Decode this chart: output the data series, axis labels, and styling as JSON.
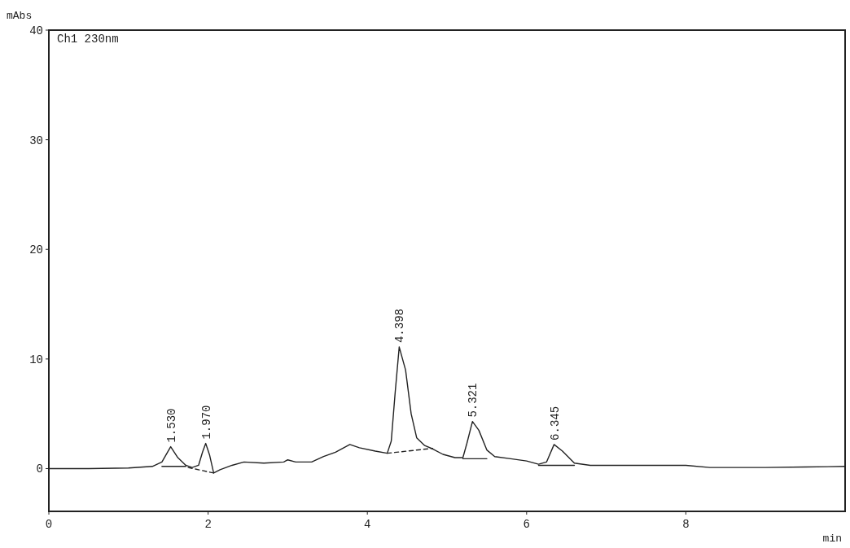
{
  "chart_data": {
    "type": "line",
    "xlabel": "min",
    "ylabel": "mAbs",
    "xlim": [
      0,
      10
    ],
    "ylim": [
      -3.9,
      40
    ],
    "xticks": [
      0,
      2,
      4,
      6,
      8
    ],
    "yticks": [
      0,
      10,
      20,
      30,
      40
    ],
    "grid": false,
    "marker": "none",
    "annotations": [
      "Ch1 230nm",
      {
        "text": "1.530",
        "x": 1.53,
        "y": 2.0
      },
      {
        "text": "1.970",
        "x": 1.97,
        "y": 2.3
      },
      {
        "text": "4.398",
        "x": 4.4,
        "y": 11.1
      },
      {
        "text": "5.321",
        "x": 5.32,
        "y": 4.3
      },
      {
        "text": "6.345",
        "x": 6.345,
        "y": 2.2
      }
    ],
    "series": [
      {
        "color": "#222222",
        "line_style": "solid",
        "x": [
          0,
          0.5,
          1.0,
          1.3,
          1.42,
          1.53,
          1.62,
          1.72,
          1.8,
          1.88,
          1.93,
          1.97,
          2.02,
          2.07,
          2.15,
          2.3,
          2.45,
          2.7,
          2.95,
          3.0,
          3.1,
          3.3,
          3.45,
          3.6,
          3.78,
          3.9,
          4.1,
          4.25,
          4.3,
          4.35,
          4.4,
          4.48,
          4.55,
          4.62,
          4.72,
          4.82,
          4.95,
          5.1,
          5.2,
          5.25,
          5.32,
          5.4,
          5.5,
          5.6,
          5.8,
          6.0,
          6.15,
          6.25,
          6.345,
          6.45,
          6.6,
          6.8,
          7.2,
          7.6,
          8.0,
          8.3,
          8.6,
          9.0,
          9.5,
          10
        ],
        "values": [
          0,
          0,
          0.05,
          0.2,
          0.6,
          2.0,
          1.0,
          0.3,
          0.1,
          0.3,
          1.5,
          2.3,
          1.2,
          -0.4,
          -0.1,
          0.3,
          0.6,
          0.5,
          0.6,
          0.8,
          0.6,
          0.6,
          1.1,
          1.5,
          2.2,
          1.9,
          1.6,
          1.4,
          2.5,
          7,
          11.1,
          9,
          5,
          2.8,
          2.1,
          1.8,
          1.3,
          1.0,
          1.0,
          2.3,
          4.3,
          3.5,
          1.7,
          1.1,
          0.9,
          0.7,
          0.4,
          0.6,
          2.2,
          1.6,
          0.5,
          0.3,
          0.3,
          0.3,
          0.3,
          0.1,
          0.1,
          0.1,
          0.15,
          0.2
        ]
      },
      {
        "color": "#222222",
        "line_style": "solid",
        "x": [
          1.42,
          1.72,
          null,
          5.2,
          5.5,
          null,
          6.15,
          6.6
        ],
        "values": [
          0.2,
          0.2,
          null,
          0.9,
          0.9,
          null,
          0.3,
          0.3
        ]
      },
      {
        "color": "#222222",
        "line_style": "dashed",
        "x": [
          1.75,
          2.07,
          null,
          4.25,
          4.82
        ],
        "values": [
          0.1,
          -0.4,
          null,
          1.4,
          1.85
        ]
      }
    ]
  }
}
